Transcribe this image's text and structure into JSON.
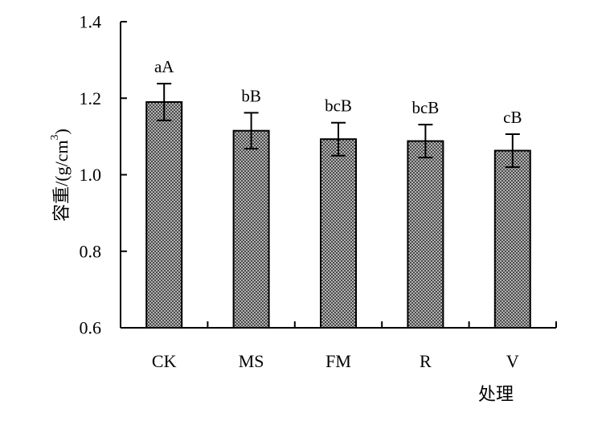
{
  "chart_data": {
    "type": "bar",
    "categories": [
      "CK",
      "MS",
      "FM",
      "R",
      "V"
    ],
    "values": [
      1.19,
      1.115,
      1.093,
      1.088,
      1.063
    ],
    "errors": [
      0.048,
      0.047,
      0.043,
      0.043,
      0.043
    ],
    "significance": [
      "aA",
      "bB",
      "bcB",
      "bcB",
      "cB"
    ],
    "ylabel_main": "容重/(g/cm",
    "ylabel_sup": "3",
    "ylabel_close": ")",
    "xlabel": "处理",
    "ylim": [
      0.6,
      1.4
    ],
    "yticks": [
      0.6,
      0.8,
      1.0,
      1.2,
      1.4
    ],
    "ytick_labels": [
      "0.6",
      "0.8",
      "1.0",
      "1.2",
      "1.4"
    ],
    "grid": false,
    "bar_fill": "#8c8c8c",
    "bar_pattern": "crosshatch"
  }
}
